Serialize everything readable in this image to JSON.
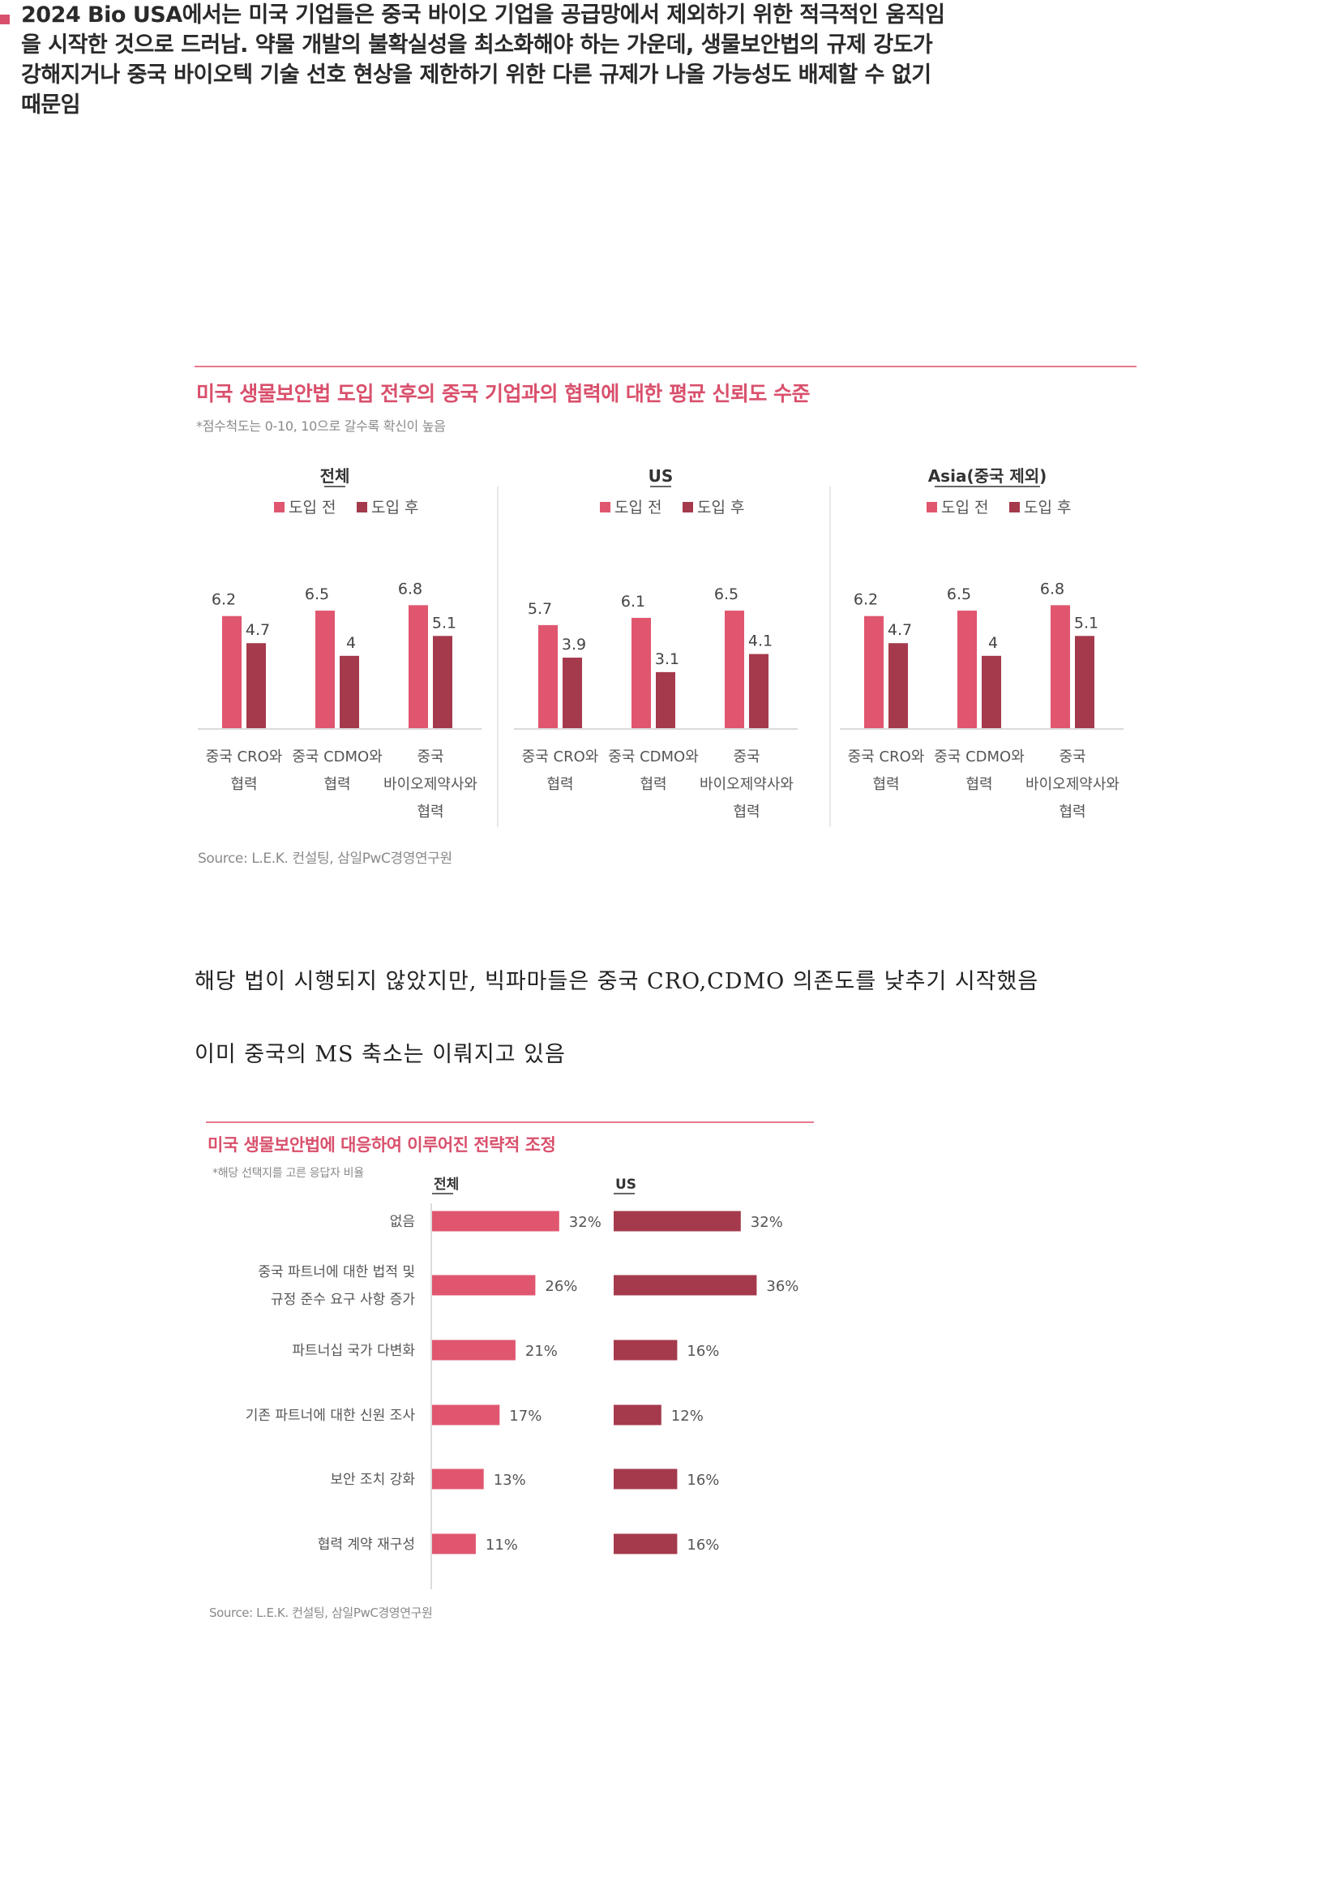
{
  "bullet_text": "2024 Bio USA에서는 미국 기업들은 중국 바이오 기업을 공급망에서 제외하기 위한 적극적인 움직임을 시작한 것으로 드러남. 약물 개발의 불확실성을 최소화해야 하는 가운데, 생물보안법의 규제 강도가 강해지거나 중국 바이오텍 기술 선호 현상을 제한하기 위한 다른 규제가 나올 가능성도 배제할 수 없기 때문임",
  "chart1": {
    "title": "미국 생물보안법 도입 전후의 중국 기업과의 협력에 대한 평균 신뢰도 수준",
    "note": "*점수척도는 0-10, 10으로 갈수록 확신이 높음",
    "legend": [
      "도입 전",
      "도입 후"
    ],
    "source": "Source: L.E.K. 컨설팅, 삼일PwC경영연구원"
  },
  "body": {
    "line1": "해당 법이 시행되지 않았지만, 빅파마들은 중국 CRO,CDMO 의존도를 낮추기 시작했음",
    "line2": "이미 중국의 MS 축소는 이뤄지고 있음"
  },
  "chart2": {
    "title": "미국 생물보안법에 대응하여 이루어진 전략적 조정",
    "note": "*해당 선택지를 고른 응답자 비율",
    "source": "Source: L.E.K. 컨설팅, 삼일PwC경영연구원"
  },
  "colors": {
    "before": "#e0566f",
    "after": "#a53a4c",
    "accent": "#d9506c",
    "rule": "#e57a8d"
  },
  "chart_data": [
    {
      "type": "bar",
      "title": "미국 생물보안법 도입 전후의 중국 기업과의 협력에 대한 평균 신뢰도 수준",
      "panels": [
        {
          "title": "전체",
          "categories": [
            [
              "중국 CRO와",
              "협력"
            ],
            [
              "중국 CDMO와",
              "협력"
            ],
            [
              "중국",
              "바이오제약사와",
              "협력"
            ]
          ],
          "series": [
            {
              "name": "도입 전",
              "values": [
                6.2,
                6.5,
                6.8
              ]
            },
            {
              "name": "도입 후",
              "values": [
                4.7,
                4,
                5.1
              ]
            }
          ]
        },
        {
          "title": "US",
          "categories": [
            [
              "중국 CRO와",
              "협력"
            ],
            [
              "중국 CDMO와",
              "협력"
            ],
            [
              "중국",
              "바이오제약사와",
              "협력"
            ]
          ],
          "series": [
            {
              "name": "도입 전",
              "values": [
                5.7,
                6.1,
                6.5
              ]
            },
            {
              "name": "도입 후",
              "values": [
                3.9,
                3.1,
                4.1
              ]
            }
          ]
        },
        {
          "title": "Asia(중국 제외)",
          "categories": [
            [
              "중국 CRO와",
              "협력"
            ],
            [
              "중국 CDMO와",
              "협력"
            ],
            [
              "중국",
              "바이오제약사와",
              "협력"
            ]
          ],
          "series": [
            {
              "name": "도입 전",
              "values": [
                6.2,
                6.5,
                6.8
              ]
            },
            {
              "name": "도입 후",
              "values": [
                4.7,
                4,
                5.1
              ]
            }
          ]
        }
      ],
      "ylim": [
        0,
        10
      ],
      "grid": false,
      "legend": "top"
    },
    {
      "type": "bar",
      "orientation": "horizontal",
      "title": "미국 생물보안법에 대응하여 이루어진 전략적 조정",
      "categories": [
        [
          "없음"
        ],
        [
          "중국 파트너에 대한 법적 및",
          "규정 준수 요구 사항 증가"
        ],
        [
          "파트너십 국가 다변화"
        ],
        [
          "기존 파트너에 대한 신원 조사"
        ],
        [
          "보안 조치 강화"
        ],
        [
          "협력 계약 재구성"
        ]
      ],
      "series": [
        {
          "name": "전체",
          "values": [
            32,
            26,
            21,
            17,
            13,
            11
          ]
        },
        {
          "name": "US",
          "values": [
            32,
            36,
            16,
            12,
            16,
            16
          ]
        }
      ],
      "unit": "%",
      "xlim": [
        0,
        40
      ],
      "grid": false
    }
  ]
}
